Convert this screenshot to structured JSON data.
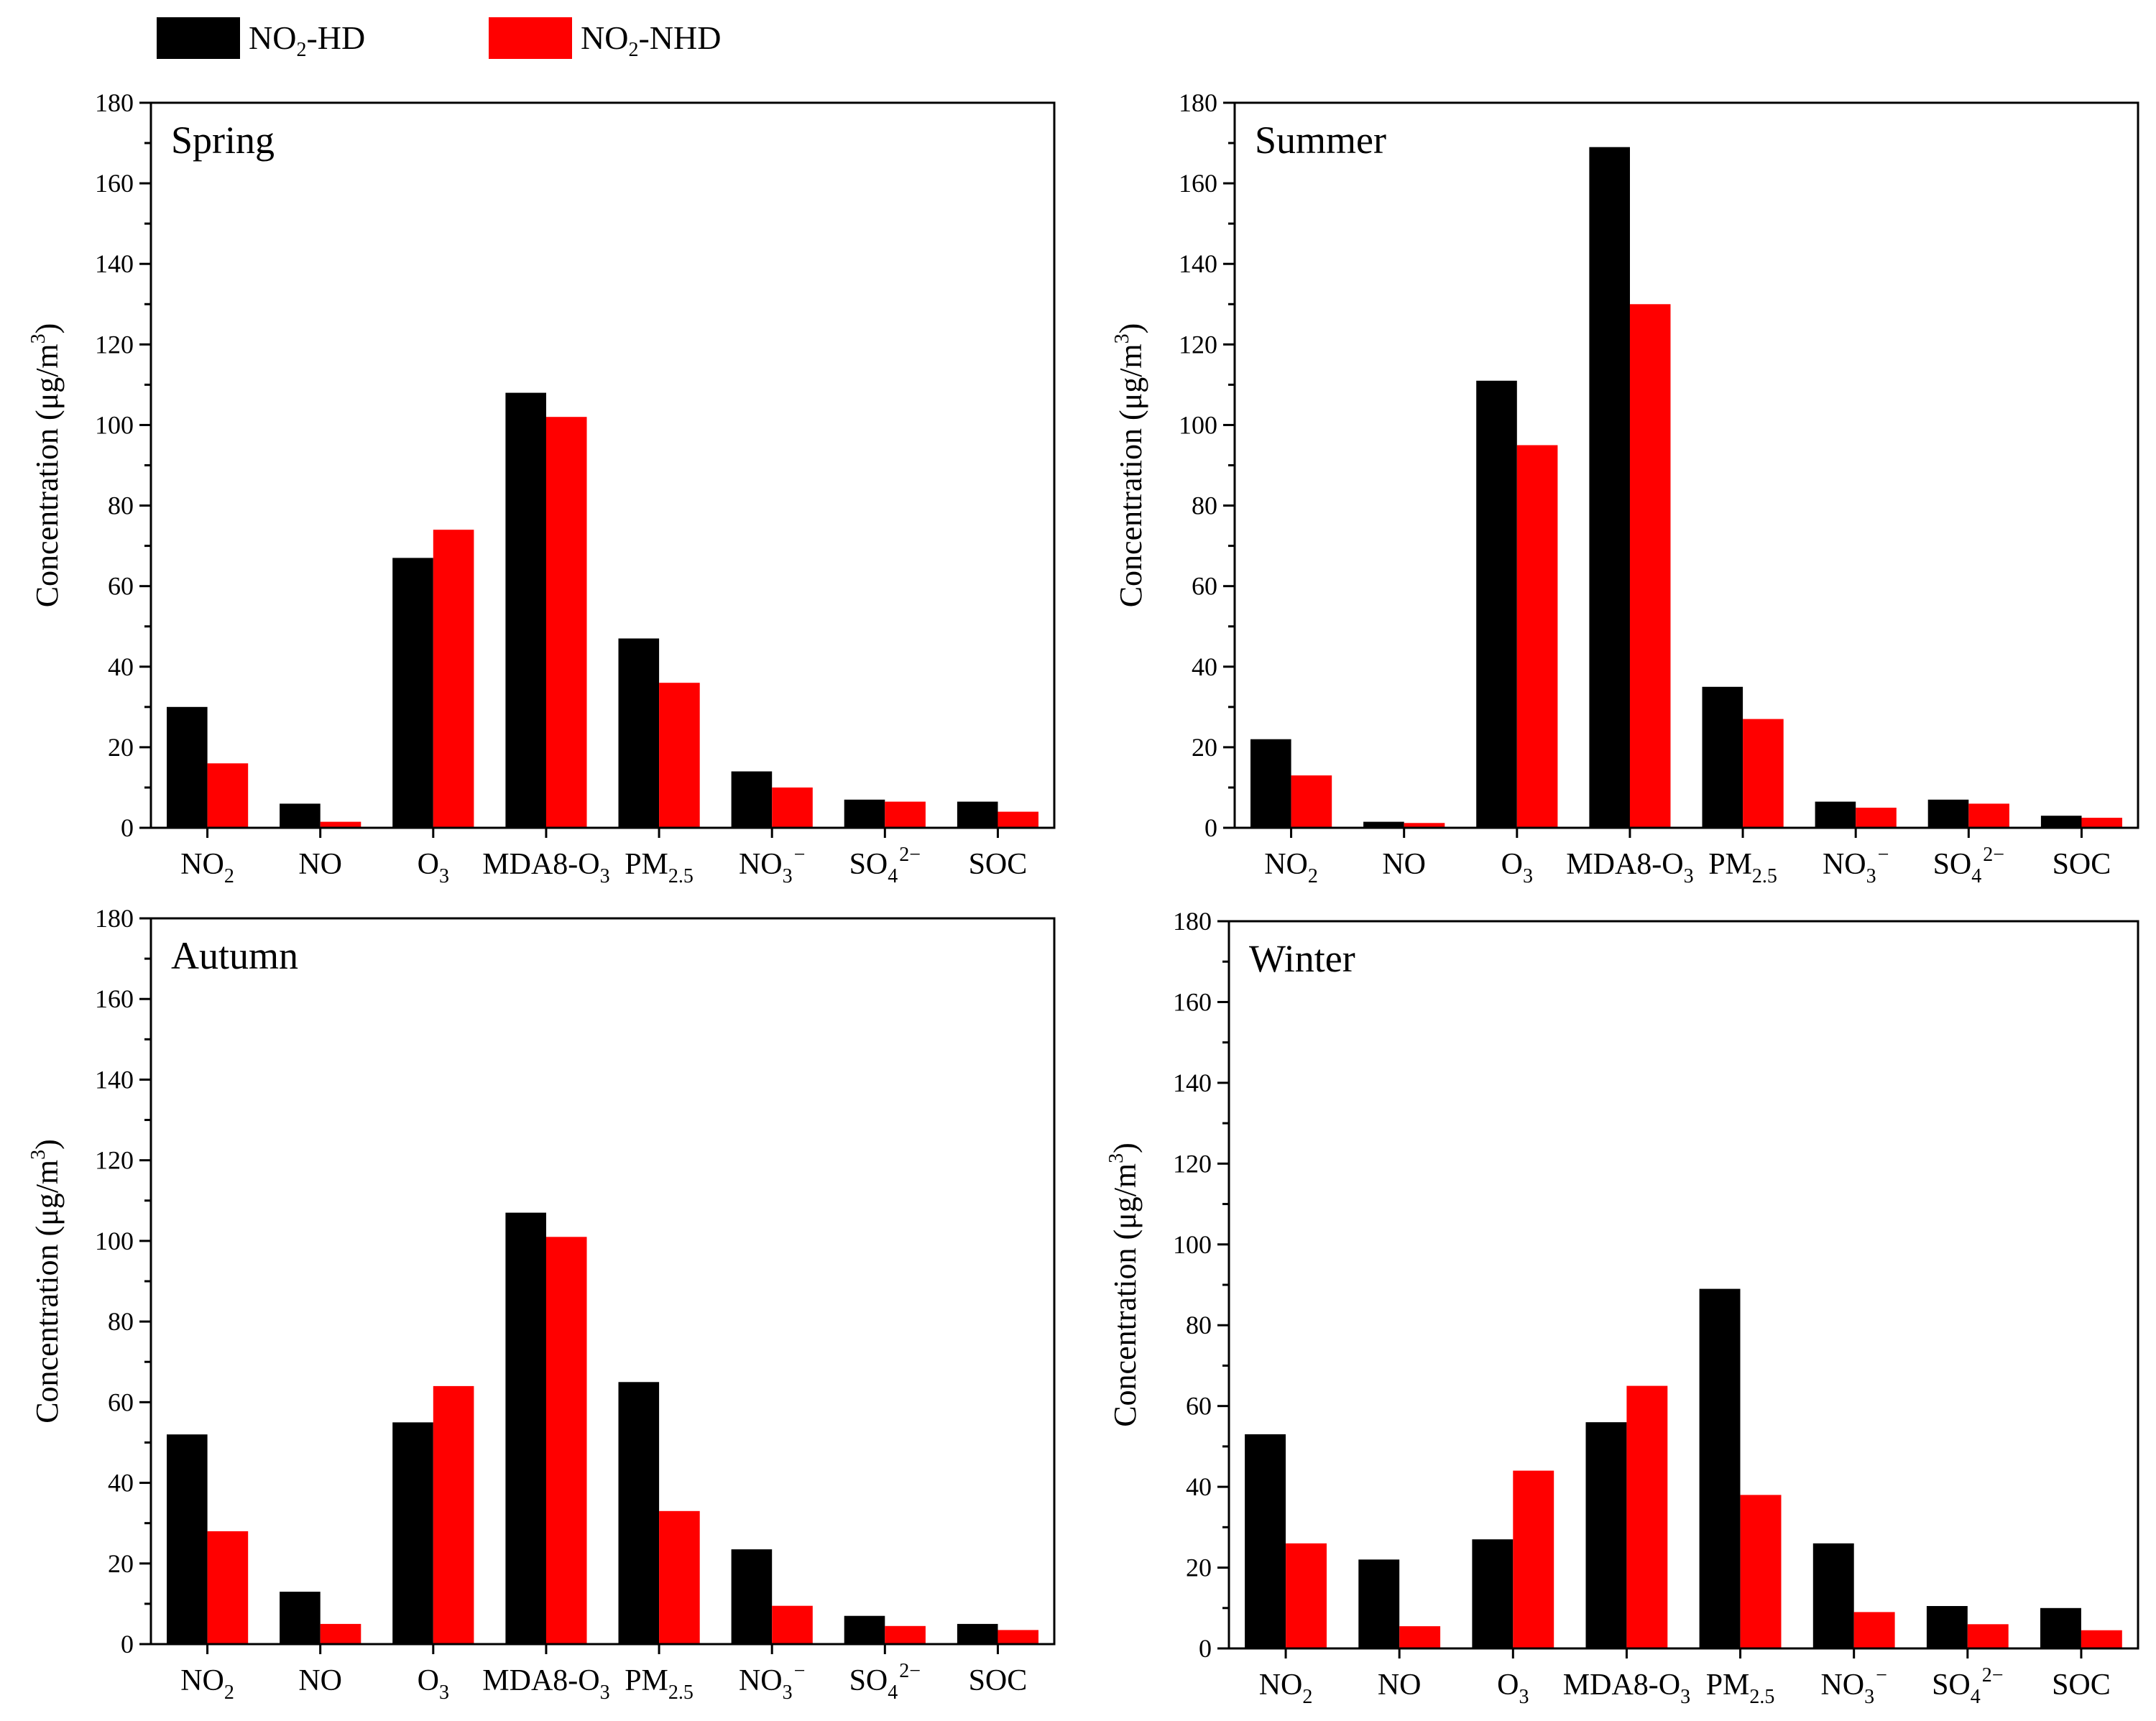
{
  "legend": {
    "hd_label": "NO2-HD",
    "nhd_label": "NO2-NHD",
    "hd_color": "#000000",
    "nhd_color": "#ff0000"
  },
  "chart_data": [
    {
      "type": "bar",
      "title": "Spring",
      "ylabel": "Concentration (μg/m3)",
      "ylim": [
        0,
        180
      ],
      "yticks": [
        0,
        20,
        40,
        60,
        80,
        100,
        120,
        140,
        160,
        180
      ],
      "categories": [
        "NO2",
        "NO",
        "O3",
        "MDA8-O3",
        "PM2.5",
        "NO3−",
        "SO42−",
        "SOC"
      ],
      "series": [
        {
          "name": "NO2-HD",
          "values": [
            30,
            6,
            67,
            108,
            47,
            14,
            7,
            6.5
          ]
        },
        {
          "name": "NO2-NHD",
          "values": [
            16,
            1.5,
            74,
            102,
            36,
            10,
            6.5,
            4
          ]
        }
      ]
    },
    {
      "type": "bar",
      "title": "Summer",
      "ylabel": "Concentration (μg/m3)",
      "ylim": [
        0,
        180
      ],
      "yticks": [
        0,
        20,
        40,
        60,
        80,
        100,
        120,
        140,
        160,
        180
      ],
      "categories": [
        "NO2",
        "NO",
        "O3",
        "MDA8-O3",
        "PM2.5",
        "NO3−",
        "SO42−",
        "SOC"
      ],
      "series": [
        {
          "name": "NO2-HD",
          "values": [
            22,
            1.5,
            111,
            169,
            35,
            6.5,
            7,
            3
          ]
        },
        {
          "name": "NO2-NHD",
          "values": [
            13,
            1.2,
            95,
            130,
            27,
            5,
            6,
            2.5
          ]
        }
      ]
    },
    {
      "type": "bar",
      "title": "Autumn",
      "ylabel": "Concentration (μg/m3)",
      "ylim": [
        0,
        180
      ],
      "yticks": [
        0,
        20,
        40,
        60,
        80,
        100,
        120,
        140,
        160,
        180
      ],
      "categories": [
        "NO2",
        "NO",
        "O3",
        "MDA8-O3",
        "PM2.5",
        "NO3−",
        "SO42−",
        "SOC"
      ],
      "series": [
        {
          "name": "NO2-HD",
          "values": [
            52,
            13,
            55,
            107,
            65,
            23.5,
            7,
            5
          ]
        },
        {
          "name": "NO2-NHD",
          "values": [
            28,
            5,
            64,
            101,
            33,
            9.5,
            4.5,
            3.5
          ]
        }
      ]
    },
    {
      "type": "bar",
      "title": "Winter",
      "ylabel": "Concentration (μg/m3)",
      "ylim": [
        0,
        180
      ],
      "yticks": [
        0,
        20,
        40,
        60,
        80,
        100,
        120,
        140,
        160,
        180
      ],
      "categories": [
        "NO2",
        "NO",
        "O3",
        "MDA8-O3",
        "PM2.5",
        "NO3−",
        "SO42−",
        "SOC"
      ],
      "series": [
        {
          "name": "NO2-HD",
          "values": [
            53,
            22,
            27,
            56,
            89,
            26,
            10.5,
            10
          ]
        },
        {
          "name": "NO2-NHD",
          "values": [
            26,
            5.5,
            44,
            65,
            38,
            9,
            6,
            4.5
          ]
        }
      ]
    }
  ]
}
